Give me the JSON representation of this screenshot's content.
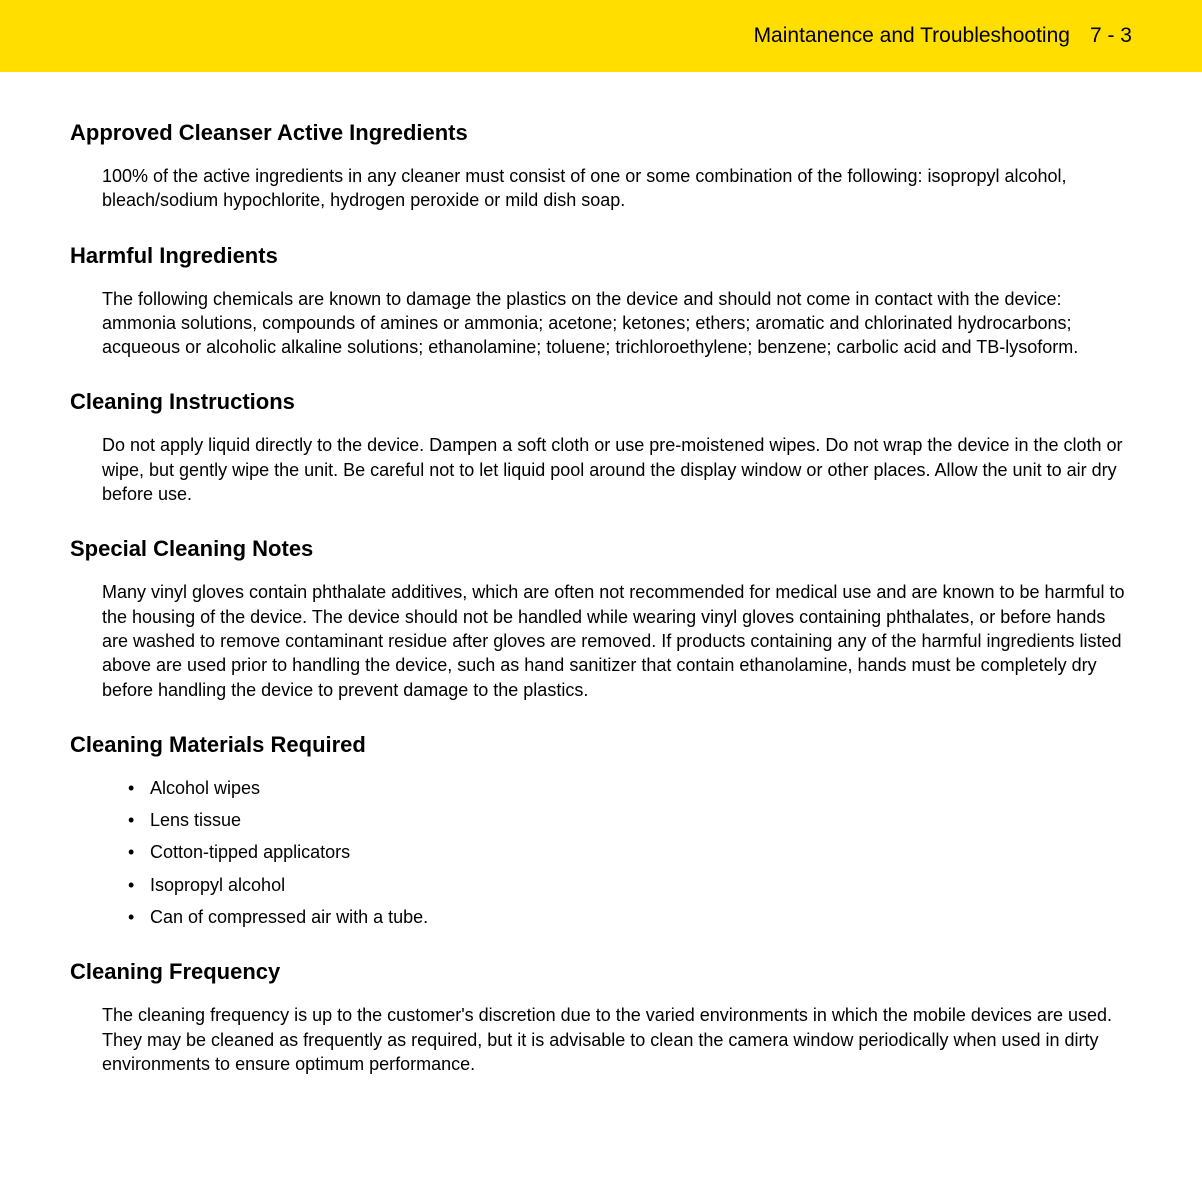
{
  "header": {
    "title": "Maintanence and Troubleshooting",
    "page": "7 - 3",
    "bg_color": "#ffde00",
    "text_color": "#000000"
  },
  "sections": [
    {
      "heading": "Approved Cleanser Active Ingredients",
      "body": "100% of the active ingredients in any cleaner must consist of one or some combination of the following: isopropyl alcohol, bleach/sodium hypochlorite, hydrogen peroxide or mild dish soap."
    },
    {
      "heading": "Harmful Ingredients",
      "body": "The following chemicals are known to damage the plastics on the device and should not come in contact with the device: ammonia solutions, compounds of amines or ammonia; acetone; ketones; ethers; aromatic and chlorinated hydrocarbons; acqueous or alcoholic alkaline solutions; ethanolamine; toluene; trichloroethylene; benzene; carbolic acid and TB-lysoform."
    },
    {
      "heading": "Cleaning Instructions",
      "body": "Do not apply liquid directly to the device. Dampen a soft cloth or use pre-moistened wipes. Do not wrap the device in the cloth or wipe, but gently wipe the unit. Be careful not to let liquid pool around the display window or other places. Allow the unit to air dry before use."
    },
    {
      "heading": "Special Cleaning Notes",
      "body": "Many vinyl gloves contain phthalate additives, which are often not recommended for medical use and are known to be harmful to the housing of the device. The device should not be handled while wearing vinyl gloves containing phthalates, or before hands are washed to remove contaminant residue after gloves are removed. If products containing any of the harmful ingredients listed above are used prior to handling the device, such as hand sanitizer that contain ethanolamine, hands must be completely dry before handling the device to prevent damage to the plastics."
    },
    {
      "heading": "Cleaning Materials Required",
      "list": [
        "Alcohol wipes",
        "Lens tissue",
        "Cotton-tipped applicators",
        "Isopropyl alcohol",
        "Can of compressed air with a tube."
      ]
    },
    {
      "heading": "Cleaning Frequency",
      "body": "The cleaning frequency is up to the customer's discretion due to the varied environments in which the mobile devices are used. They may be cleaned as frequently as required, but it is advisable to clean the camera window periodically when used in dirty environments to ensure optimum performance."
    }
  ]
}
